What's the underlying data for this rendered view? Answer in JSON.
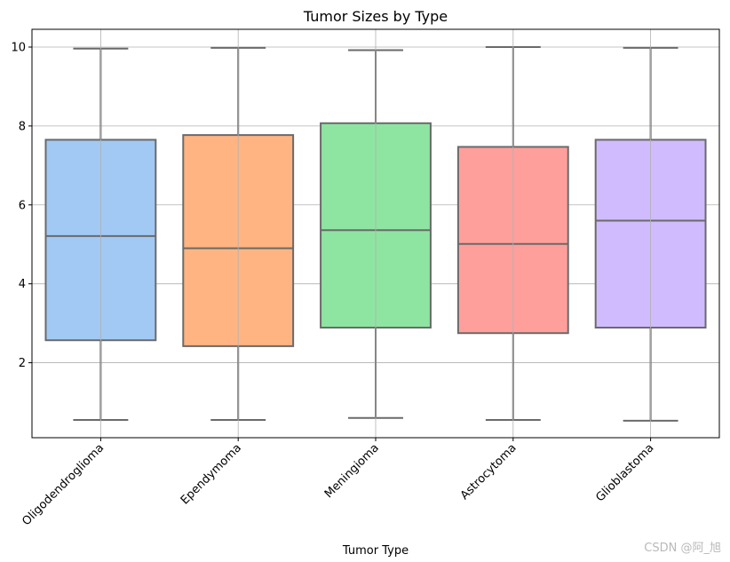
{
  "chart_data": {
    "type": "box",
    "title": "Tumor Sizes by Type",
    "xlabel": "Tumor Type",
    "ylabel": "",
    "ylim": [
      0.1,
      10.45
    ],
    "yticks": [
      2,
      4,
      6,
      8,
      10
    ],
    "grid": true,
    "categories": [
      "Oligodendroglioma",
      "Ependymoma",
      "Meningioma",
      "Astrocytoma",
      "Glioblastoma"
    ],
    "boxes": [
      {
        "category": "Oligodendroglioma",
        "whisker_low": 0.55,
        "q1": 2.57,
        "median": 5.21,
        "q3": 7.65,
        "whisker_high": 9.96,
        "color": "#a1c9f4"
      },
      {
        "category": "Ependymoma",
        "whisker_low": 0.55,
        "q1": 2.42,
        "median": 4.9,
        "q3": 7.77,
        "whisker_high": 9.98,
        "color": "#ffb482"
      },
      {
        "category": "Meningioma",
        "whisker_low": 0.6,
        "q1": 2.89,
        "median": 5.36,
        "q3": 8.07,
        "whisker_high": 9.92,
        "color": "#8de5a1"
      },
      {
        "category": "Astrocytoma",
        "whisker_low": 0.55,
        "q1": 2.75,
        "median": 5.01,
        "q3": 7.47,
        "whisker_high": 10.0,
        "color": "#ff9f9b"
      },
      {
        "category": "Glioblastoma",
        "whisker_low": 0.53,
        "q1": 2.89,
        "median": 5.6,
        "q3": 7.65,
        "whisker_high": 9.98,
        "color": "#d0bbff"
      }
    ]
  },
  "watermark": "CSDN @阿_旭"
}
